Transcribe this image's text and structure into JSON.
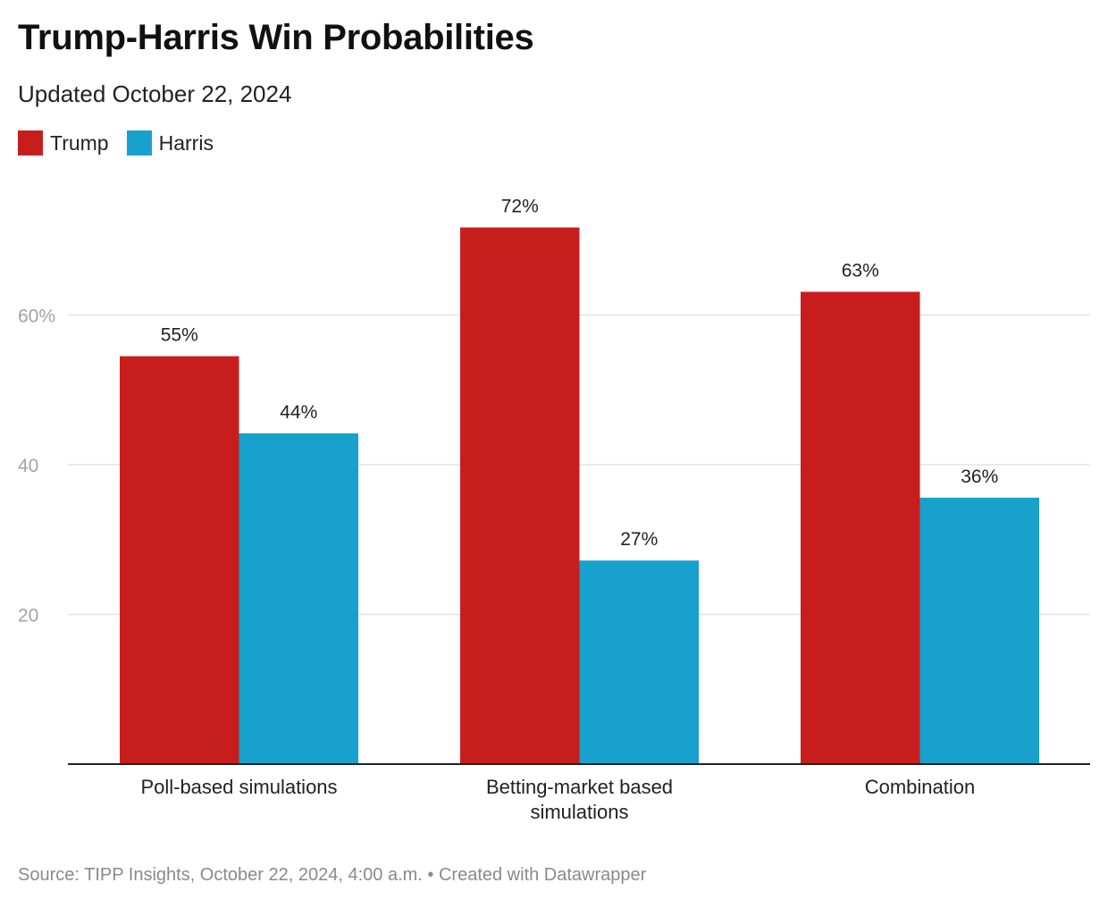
{
  "header": {
    "title": "Trump-Harris Win Probabilities",
    "subtitle": "Updated October 22, 2024"
  },
  "legend": [
    {
      "label": "Trump",
      "color": "#c71e1d"
    },
    {
      "label": "Harris",
      "color": "#18a1cd"
    }
  ],
  "footer": {
    "source": "Source: TIPP Insights, October 22, 2024, 4:00 a.m. • Created with Datawrapper"
  },
  "chart_data": {
    "type": "bar",
    "title": "Trump-Harris Win Probabilities",
    "subtitle": "Updated October 22, 2024",
    "categories": [
      [
        "Poll-based simulations"
      ],
      [
        "Betting-market based",
        "simulations"
      ],
      [
        "Combination"
      ]
    ],
    "series": [
      {
        "name": "Trump",
        "color": "#c71e1d",
        "values": [
          54.5,
          71.7,
          63.1
        ],
        "labels": [
          "55%",
          "72%",
          "63%"
        ]
      },
      {
        "name": "Harris",
        "color": "#18a1cd",
        "values": [
          44.2,
          27.2,
          35.6
        ],
        "labels": [
          "44%",
          "27%",
          "36%"
        ]
      }
    ],
    "yticks": [
      {
        "value": 20,
        "label": "20"
      },
      {
        "value": 40,
        "label": "40"
      },
      {
        "value": 60,
        "label": "60%"
      }
    ],
    "ylim": [
      0,
      80
    ],
    "grid": true,
    "legend_position": "top-left"
  }
}
